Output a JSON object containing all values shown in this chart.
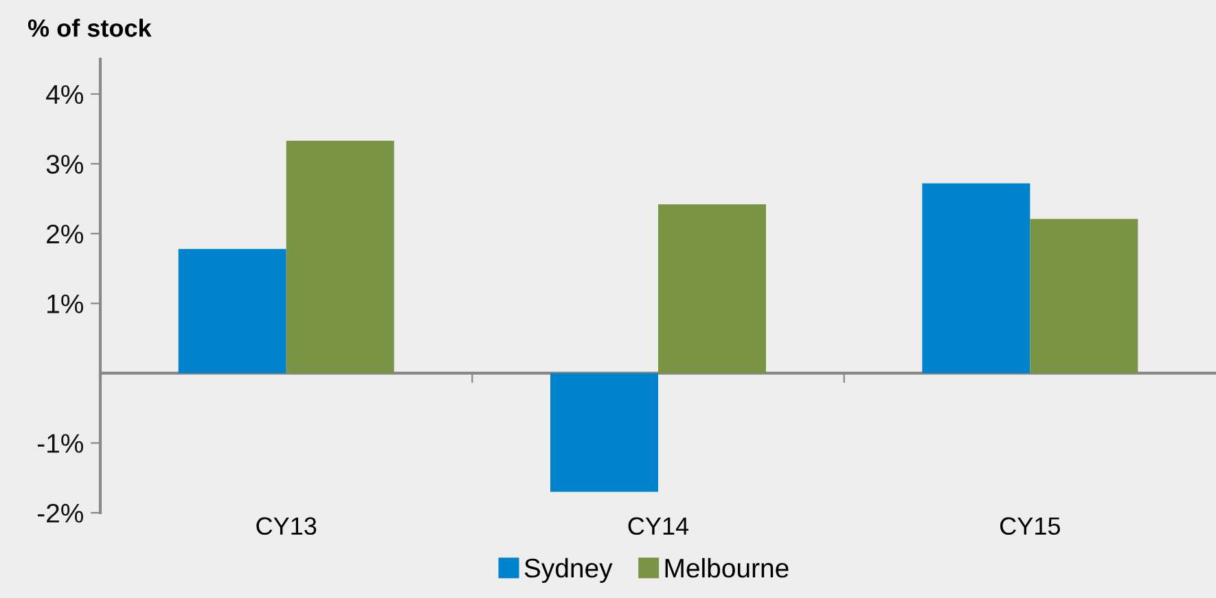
{
  "chart_data": {
    "type": "bar",
    "title": "% of stock",
    "categories": [
      "CY13",
      "CY14",
      "CY15"
    ],
    "series": [
      {
        "name": "Sydney",
        "color": "#0083cc",
        "values": [
          1.78,
          -1.7,
          2.72
        ]
      },
      {
        "name": "Melbourne",
        "color": "#7a9445",
        "values": [
          3.33,
          2.42,
          2.21
        ]
      }
    ],
    "ylim": [
      -2,
      4.5
    ],
    "yticks": [
      {
        "value": 4,
        "label": "4%"
      },
      {
        "value": 3,
        "label": "3%"
      },
      {
        "value": 2,
        "label": "2%"
      },
      {
        "value": 1,
        "label": "1%"
      },
      {
        "value": -1,
        "label": "-1%"
      },
      {
        "value": -2,
        "label": "-2%"
      }
    ],
    "grid": false,
    "legend": "bottom"
  }
}
